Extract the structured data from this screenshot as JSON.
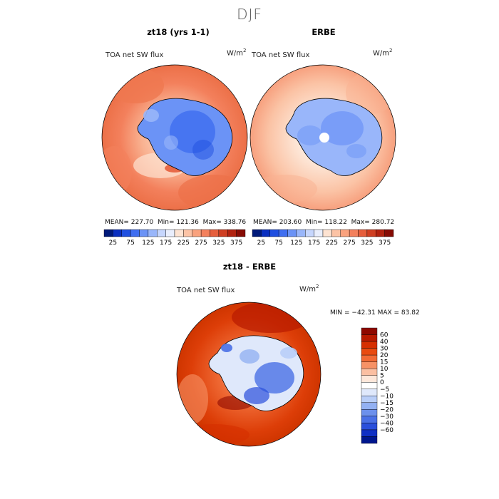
{
  "figure_title": "DJF",
  "panels": [
    {
      "title": "zt18 (yrs 1-1)",
      "variable": "TOA net SW flux",
      "units_base": "W/m",
      "units_exp": "2",
      "stats": {
        "mean_label": "MEAN=",
        "mean": "227.70",
        "min_label": "Min=",
        "min": "121.36",
        "max_label": "Max=",
        "max": "338.76"
      }
    },
    {
      "title": "ERBE",
      "variable": "TOA net SW flux",
      "units_base": "W/m",
      "units_exp": "2",
      "stats": {
        "mean_label": "MEAN=",
        "mean": "203.60",
        "min_label": "Min=",
        "min": "118.22",
        "max_label": "Max=",
        "max": "280.72"
      }
    },
    {
      "title": "zt18 - ERBE",
      "variable": "TOA net SW flux",
      "units_base": "W/m",
      "units_exp": "2",
      "stats_line": "MIN = −42.31  MAX =  83.82"
    }
  ],
  "chart_data": [
    {
      "type": "heatmap",
      "title": "zt18 (yrs 1-1)",
      "projection": "south polar stereographic",
      "variable": "TOA net SW flux",
      "units": "W/m^2",
      "mean": 227.7,
      "min": 121.36,
      "max": 338.76,
      "colorbar_levels": [
        0,
        25,
        50,
        75,
        100,
        125,
        150,
        175,
        200,
        225,
        250,
        275,
        300,
        325,
        350,
        375,
        400
      ],
      "colorbar_tick_labels": [
        "25",
        "75",
        "125",
        "175",
        "225",
        "275",
        "325",
        "375"
      ],
      "colorbar_colors": [
        "#001a7a",
        "#0a2fc0",
        "#1f4fe0",
        "#3f6ef0",
        "#6b93f6",
        "#99b6fa",
        "#c6d6fd",
        "#e9eefc",
        "#fde3d2",
        "#fcc3a5",
        "#f9a27e",
        "#f3805c",
        "#e65e3c",
        "#cf3f22",
        "#b1220f",
        "#860b04"
      ]
    },
    {
      "type": "heatmap",
      "title": "ERBE",
      "projection": "south polar stereographic",
      "variable": "TOA net SW flux",
      "units": "W/m^2",
      "mean": 203.6,
      "min": 118.22,
      "max": 280.72,
      "colorbar_levels": [
        0,
        25,
        50,
        75,
        100,
        125,
        150,
        175,
        200,
        225,
        250,
        275,
        300,
        325,
        350,
        375,
        400
      ],
      "colorbar_tick_labels": [
        "25",
        "75",
        "125",
        "175",
        "225",
        "275",
        "325",
        "375"
      ],
      "colorbar_colors": [
        "#001a7a",
        "#0a2fc0",
        "#1f4fe0",
        "#3f6ef0",
        "#6b93f6",
        "#99b6fa",
        "#c6d6fd",
        "#e9eefc",
        "#fde3d2",
        "#fcc3a5",
        "#f9a27e",
        "#f3805c",
        "#e65e3c",
        "#cf3f22",
        "#b1220f",
        "#860b04"
      ]
    },
    {
      "type": "heatmap",
      "title": "zt18 - ERBE",
      "projection": "south polar stereographic",
      "variable": "TOA net SW flux",
      "units": "W/m^2",
      "min": -42.31,
      "max": 83.82,
      "colorbar_tick_labels": [
        "60",
        "40",
        "30",
        "20",
        "15",
        "10",
        "5",
        "0",
        "−5",
        "−10",
        "−15",
        "−20",
        "−30",
        "−40",
        "−60"
      ],
      "colorbar_colors": [
        "#8e0800",
        "#b81a00",
        "#d62f00",
        "#e84a10",
        "#f26a35",
        "#f79266",
        "#fbbfa2",
        "#fde7da",
        "#ffffff",
        "#dfe8fb",
        "#b9cef8",
        "#93b1f3",
        "#6c90ec",
        "#4a70e6",
        "#2a4fdb",
        "#1030c4",
        "#00178e"
      ]
    }
  ]
}
